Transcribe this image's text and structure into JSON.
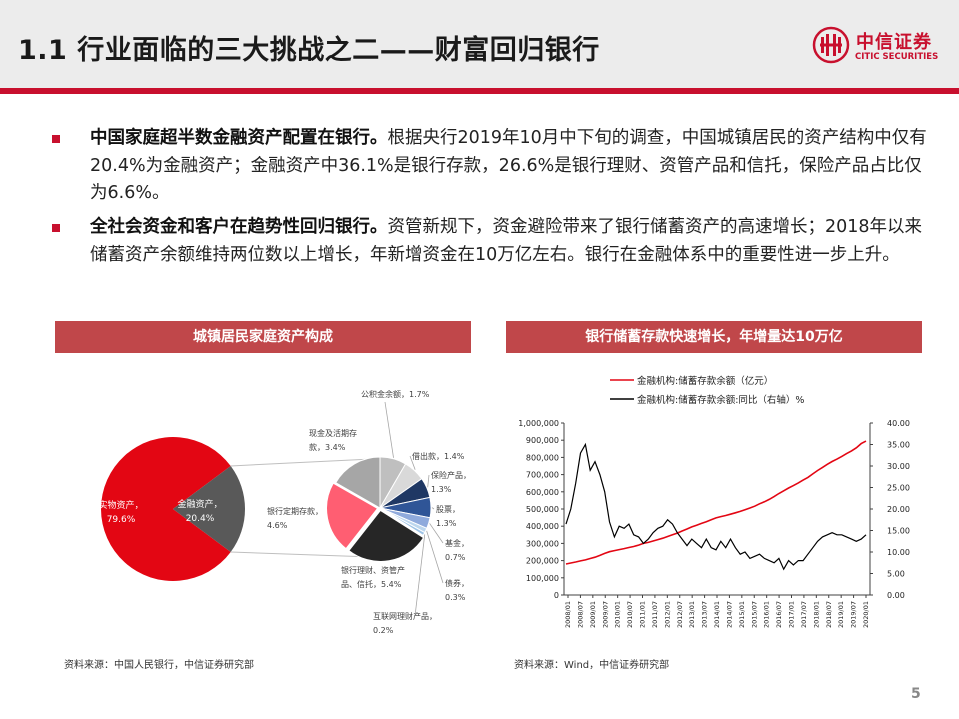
{
  "header": {
    "title": "1.1 行业面临的三大挑战之二——财富回归银行",
    "logo_cn": "中信证券",
    "logo_en": "CITIC SECURITIES"
  },
  "bullets": [
    {
      "lead": "中国家庭超半数金融资产配置在银行。",
      "body": "根据央行2019年10月中下旬的调查，中国城镇居民的资产结构中仅有20.4%为金融资产；金融资产中36.1%是银行存款，26.6%是银行理财、资管产品和信托，保险产品占比仅为6.6%。"
    },
    {
      "lead": "全社会资金和客户在趋势性回归银行。",
      "body": "资管新规下，资金避险带来了银行储蓄资产的高速增长；2018年以来储蓄资产余额维持两位数以上增长，年新增资金在10万亿左右。银行在金融体系中的重要性进一步上升。"
    }
  ],
  "left_panel": {
    "heading": "城镇居民家庭资产构成",
    "source": "资料来源：中国人民银行，中信证券研究部"
  },
  "right_panel": {
    "heading": "银行储蓄存款快速增长，年增量达10万亿",
    "source": "资料来源：Wind，中信证券研究部"
  },
  "page_number": "5",
  "chart_data": [
    {
      "type": "pie",
      "title": "",
      "main": {
        "slices": [
          {
            "label": "实物资产，",
            "value_label": "79.6%",
            "value": 79.6,
            "color": "#e30613"
          },
          {
            "label": "金融资产，",
            "value_label": "20.4%",
            "value": 20.4,
            "color": "#595959"
          }
        ]
      },
      "breakdown": {
        "slices": [
          {
            "label": "公积金余额，1.7%",
            "value": 1.7,
            "color": "#bfbfbf"
          },
          {
            "label": "借出款，1.4%",
            "value": 1.4,
            "color": "#d9d9d9"
          },
          {
            "label": "保险产品，",
            "value_label": "1.3%",
            "value": 1.3,
            "color": "#1f3864"
          },
          {
            "label": "股票，",
            "value_label": "1.3%",
            "value": 1.3,
            "color": "#2f5597"
          },
          {
            "label": "基金，",
            "value_label": "0.7%",
            "value": 0.7,
            "color": "#8faadc"
          },
          {
            "label": "债券，",
            "value_label": "0.3%",
            "value": 0.3,
            "color": "#bdd7ee"
          },
          {
            "label": "互联网理财产品，",
            "value_label": "0.2%",
            "value": 0.2,
            "color": "#9dc3e6"
          },
          {
            "label": "银行理财、资管产",
            "value_label": "品、信托，5.4%",
            "value": 5.4,
            "color": "#262626"
          },
          {
            "label": "银行定期存款，",
            "value_label": "4.6%",
            "value": 4.6,
            "color": "#ff5e72"
          },
          {
            "label": "现金及活期存",
            "value_label": "款，3.4%",
            "value": 3.4,
            "color": "#a6a6a6"
          }
        ]
      }
    },
    {
      "type": "line",
      "title": "",
      "series": [
        {
          "name": "金融机构:储蓄存款余额（亿元）",
          "color": "#e30613",
          "axis": "left",
          "values": [
            180000,
            186000,
            192000,
            198000,
            204000,
            212000,
            220000,
            230000,
            242000,
            252000,
            258000,
            264000,
            270000,
            276000,
            282000,
            290000,
            300000,
            306000,
            314000,
            322000,
            330000,
            340000,
            350000,
            360000,
            372000,
            384000,
            396000,
            406000,
            416000,
            426000,
            438000,
            448000,
            456000,
            462000,
            470000,
            478000,
            486000,
            496000,
            506000,
            516000,
            530000,
            542000,
            556000,
            572000,
            590000,
            606000,
            622000,
            636000,
            652000,
            668000,
            684000,
            704000,
            724000,
            742000,
            760000,
            776000,
            790000,
            806000,
            822000,
            838000,
            856000,
            880000,
            895000
          ]
        },
        {
          "name": "金融机构:储蓄存款余额:同比（右轴）%",
          "color": "#000000",
          "axis": "right",
          "values": [
            16.5,
            20.0,
            26.0,
            33.0,
            35.0,
            29.0,
            31.0,
            28.0,
            24.0,
            17.0,
            13.5,
            16.0,
            15.5,
            16.5,
            14.0,
            13.5,
            12.0,
            13.0,
            14.5,
            15.5,
            16.0,
            17.5,
            16.5,
            14.5,
            13.0,
            11.5,
            13.0,
            12.0,
            11.0,
            13.0,
            11.0,
            10.5,
            12.5,
            11.0,
            13.0,
            11.0,
            9.5,
            10.0,
            8.5,
            9.0,
            9.5,
            8.5,
            8.0,
            7.5,
            8.5,
            6.0,
            8.0,
            7.0,
            8.0,
            8.0,
            9.5,
            11.0,
            12.5,
            13.5,
            14.0,
            14.5,
            14.0,
            14.0,
            13.5,
            13.0,
            12.5,
            13.0,
            14.0
          ]
        }
      ],
      "x_tick_labels": [
        "2008/01",
        "2008/07",
        "2009/01",
        "2009/07",
        "2010/01",
        "2010/07",
        "2011/01",
        "2011/07",
        "2012/01",
        "2012/07",
        "2013/01",
        "2013/07",
        "2014/01",
        "2014/07",
        "2015/01",
        "2015/07",
        "2016/01",
        "2016/07",
        "2017/01",
        "2017/07",
        "2018/01",
        "2018/07",
        "2019/01",
        "2019/07",
        "2020/01"
      ],
      "y_left_ticks": [
        "0",
        "100,000",
        "200,000",
        "300,000",
        "400,000",
        "500,000",
        "600,000",
        "700,000",
        "800,000",
        "900,000",
        "1,000,000"
      ],
      "y_right_ticks": [
        "0.00",
        "5.00",
        "10.00",
        "15.00",
        "20.00",
        "25.00",
        "30.00",
        "35.00",
        "40.00"
      ],
      "y_left_range": [
        0,
        1000000
      ],
      "y_right_range": [
        0,
        40
      ],
      "legend_position": "top-left",
      "grid": false
    }
  ]
}
